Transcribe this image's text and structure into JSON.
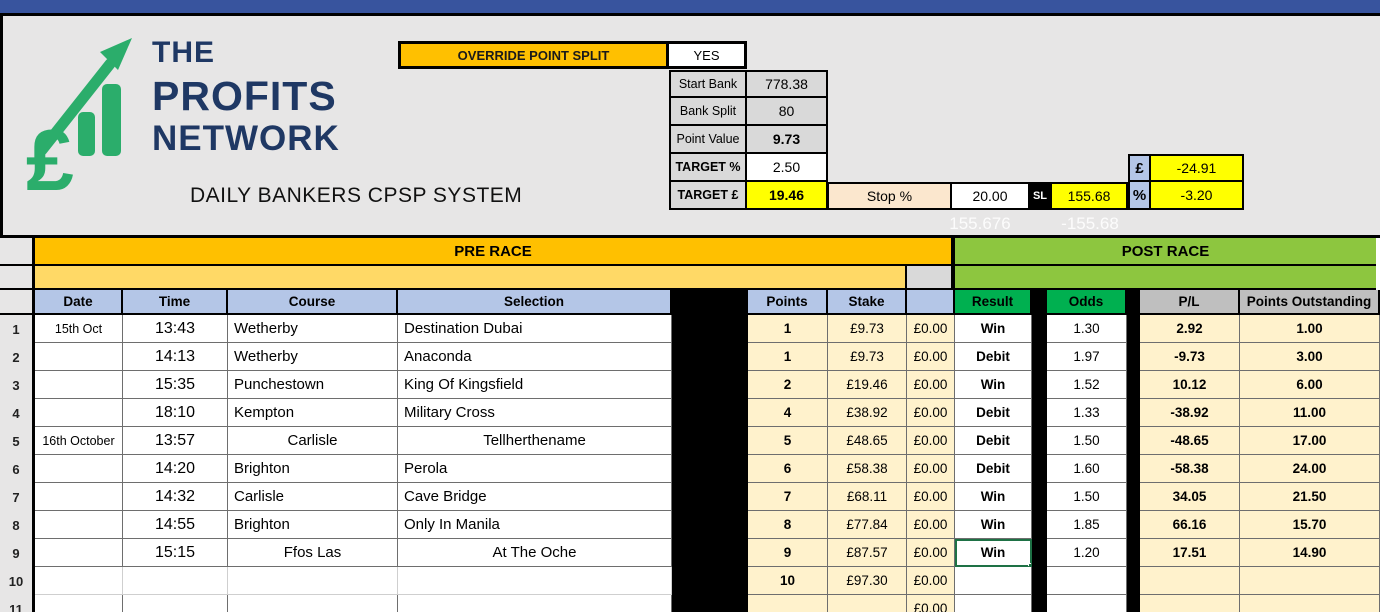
{
  "logo": {
    "pound_symbol": "£",
    "line1": "THE",
    "line2": "PROFITS",
    "line3": "NETWORK"
  },
  "subtitle": "DAILY BANKERS CPSP SYSTEM",
  "override": {
    "label": "OVERRIDE POINT SPLIT",
    "value": "YES"
  },
  "settings": {
    "rows": [
      {
        "label": "Start Bank",
        "value": "778.38"
      },
      {
        "label": "Bank Split",
        "value": "80"
      },
      {
        "label": "Point Value",
        "value": "9.73"
      },
      {
        "label": "TARGET %",
        "value": "2.50"
      },
      {
        "label": "TARGET £",
        "value": "19.46"
      }
    ],
    "stop_label": "Stop %",
    "stop_value": "20.00",
    "sl_label": "SL",
    "sl_value": "155.68",
    "pound_row": {
      "symbol": "£",
      "value": "-24.91"
    },
    "percent_row": {
      "symbol": "%",
      "value": "-3.20"
    },
    "ghost_values": [
      "155.676",
      "-155.68"
    ]
  },
  "colors": {
    "accent_orange": "#FFC000",
    "band_gold_light": "#FFD966",
    "band_green": "#8DC63F",
    "header_green": "#00B050",
    "header_blue": "#B4C6E7",
    "header_gray": "#BFBFBF",
    "highlight_yellow": "#FFFF00",
    "topbar_blue": "#38549E",
    "logo_navy": "#1F3864",
    "logo_green": "#2BAD6B"
  },
  "table": {
    "pre_band_label": "PRE RACE",
    "post_band_label": "POST RACE",
    "headers": {
      "date": "Date",
      "time": "Time",
      "course": "Course",
      "selection": "Selection",
      "points": "Points",
      "stake": "Stake",
      "zero": "",
      "result": "Result",
      "odds": "Odds",
      "pl": "P/L",
      "pts_out": "Points Outstanding"
    },
    "dropdown_icon": "▼",
    "rows": [
      {
        "n": "1",
        "date": "15th Oct",
        "time": "13:43",
        "course": "Wetherby",
        "selection": "Destination Dubai",
        "points": "1",
        "stake": "£9.73",
        "zero": "£0.00",
        "result": "Win",
        "odds": "1.30",
        "pl": "2.92",
        "pts_out": "1.00",
        "centered": false,
        "selected": false,
        "light": false
      },
      {
        "n": "2",
        "date": "",
        "time": "14:13",
        "course": "Wetherby",
        "selection": "Anaconda",
        "points": "1",
        "stake": "£9.73",
        "zero": "£0.00",
        "result": "Debit",
        "odds": "1.97",
        "pl": "-9.73",
        "pts_out": "3.00",
        "centered": false,
        "selected": false,
        "light": false
      },
      {
        "n": "3",
        "date": "",
        "time": "15:35",
        "course": "Punchestown",
        "selection": "King Of Kingsfield",
        "points": "2",
        "stake": "£19.46",
        "zero": "£0.00",
        "result": "Win",
        "odds": "1.52",
        "pl": "10.12",
        "pts_out": "6.00",
        "centered": false,
        "selected": false,
        "light": false
      },
      {
        "n": "4",
        "date": "",
        "time": "18:10",
        "course": "Kempton",
        "selection": "Military Cross",
        "points": "4",
        "stake": "£38.92",
        "zero": "£0.00",
        "result": "Debit",
        "odds": "1.33",
        "pl": "-38.92",
        "pts_out": "11.00",
        "centered": false,
        "selected": false,
        "light": false
      },
      {
        "n": "5",
        "date": "16th October",
        "time": "13:57",
        "course": "Carlisle",
        "selection": "Tellherthename",
        "points": "5",
        "stake": "£48.65",
        "zero": "£0.00",
        "result": "Debit",
        "odds": "1.50",
        "pl": "-48.65",
        "pts_out": "17.00",
        "centered": true,
        "selected": false,
        "light": false
      },
      {
        "n": "6",
        "date": "",
        "time": "14:20",
        "course": "Brighton",
        "selection": "Perola",
        "points": "6",
        "stake": "£58.38",
        "zero": "£0.00",
        "result": "Debit",
        "odds": "1.60",
        "pl": "-58.38",
        "pts_out": "24.00",
        "centered": false,
        "selected": false,
        "light": false
      },
      {
        "n": "7",
        "date": "",
        "time": "14:32",
        "course": "Carlisle",
        "selection": "Cave Bridge",
        "points": "7",
        "stake": "£68.11",
        "zero": "£0.00",
        "result": "Win",
        "odds": "1.50",
        "pl": "34.05",
        "pts_out": "21.50",
        "centered": false,
        "selected": false,
        "light": false
      },
      {
        "n": "8",
        "date": "",
        "time": "14:55",
        "course": "Brighton",
        "selection": "Only In Manila",
        "points": "8",
        "stake": "£77.84",
        "zero": "£0.00",
        "result": "Win",
        "odds": "1.85",
        "pl": "66.16",
        "pts_out": "15.70",
        "centered": false,
        "selected": false,
        "light": false
      },
      {
        "n": "9",
        "date": "",
        "time": "15:15",
        "course": "Ffos Las",
        "selection": "At The Oche",
        "points": "9",
        "stake": "£87.57",
        "zero": "£0.00",
        "result": "Win",
        "odds": "1.20",
        "pl": "17.51",
        "pts_out": "14.90",
        "centered": true,
        "selected": true,
        "light": false
      },
      {
        "n": "10",
        "date": "",
        "time": "",
        "course": "",
        "selection": "",
        "points": "10",
        "stake": "£97.30",
        "zero": "£0.00",
        "result": "",
        "odds": "",
        "pl": "",
        "pts_out": "",
        "centered": false,
        "selected": false,
        "light": true
      },
      {
        "n": "11",
        "date": "",
        "time": "",
        "course": "",
        "selection": "",
        "points": "",
        "stake": "",
        "zero": "£0.00",
        "result": "",
        "odds": "",
        "pl": "",
        "pts_out": "",
        "centered": false,
        "selected": false,
        "light": false
      }
    ]
  }
}
